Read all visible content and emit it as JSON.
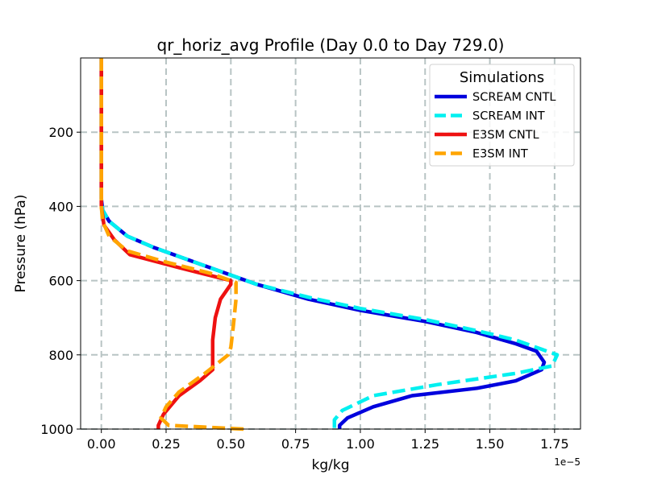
{
  "chart_data": {
    "type": "line",
    "title": "qr_horiz_avg Profile (Day 0.0 to Day 729.0)",
    "xlabel": "kg/kg",
    "ylabel": "Pressure (hPa)",
    "x_offset_label": "1e−5",
    "xlim": [
      -0.08,
      1.85
    ],
    "ylim": [
      1000,
      0
    ],
    "y_axis_inverted": true,
    "grid": true,
    "x_ticks": [
      0.0,
      0.25,
      0.5,
      0.75,
      1.0,
      1.25,
      1.5,
      1.75
    ],
    "x_tick_labels": [
      "0.00",
      "0.25",
      "0.50",
      "0.75",
      "1.00",
      "1.25",
      "1.50",
      "1.75"
    ],
    "y_ticks": [
      200,
      400,
      600,
      800,
      1000
    ],
    "y_tick_labels": [
      "200",
      "400",
      "600",
      "800",
      "1000"
    ],
    "legend": {
      "title": "Simulations",
      "placement": "top-right"
    },
    "series": [
      {
        "name": "SCREAM CNTL",
        "color": "#0000dd",
        "dash": "solid",
        "points": [
          [
            0.0,
            0
          ],
          [
            0.0,
            100
          ],
          [
            0.0,
            200
          ],
          [
            0.0,
            300
          ],
          [
            0.0,
            380
          ],
          [
            0.005,
            410
          ],
          [
            0.03,
            440
          ],
          [
            0.1,
            480
          ],
          [
            0.2,
            510
          ],
          [
            0.4,
            560
          ],
          [
            0.6,
            610
          ],
          [
            0.8,
            650
          ],
          [
            1.0,
            680
          ],
          [
            1.25,
            710
          ],
          [
            1.45,
            740
          ],
          [
            1.6,
            770
          ],
          [
            1.68,
            790
          ],
          [
            1.71,
            820
          ],
          [
            1.7,
            840
          ],
          [
            1.6,
            870
          ],
          [
            1.45,
            890
          ],
          [
            1.2,
            910
          ],
          [
            1.05,
            940
          ],
          [
            0.95,
            970
          ],
          [
            0.92,
            990
          ],
          [
            0.92,
            1000
          ]
        ]
      },
      {
        "name": "SCREAM INT",
        "color": "#00f0f0",
        "dash": "dashed",
        "points": [
          [
            0.0,
            0
          ],
          [
            0.0,
            100
          ],
          [
            0.0,
            200
          ],
          [
            0.0,
            300
          ],
          [
            0.0,
            380
          ],
          [
            0.005,
            410
          ],
          [
            0.03,
            440
          ],
          [
            0.1,
            480
          ],
          [
            0.2,
            510
          ],
          [
            0.4,
            560
          ],
          [
            0.6,
            610
          ],
          [
            0.8,
            645
          ],
          [
            1.0,
            675
          ],
          [
            1.25,
            705
          ],
          [
            1.45,
            735
          ],
          [
            1.6,
            760
          ],
          [
            1.7,
            785
          ],
          [
            1.76,
            800
          ],
          [
            1.74,
            830
          ],
          [
            1.6,
            850
          ],
          [
            1.3,
            880
          ],
          [
            1.05,
            910
          ],
          [
            0.93,
            950
          ],
          [
            0.9,
            975
          ],
          [
            0.9,
            1000
          ]
        ]
      },
      {
        "name": "E3SM CNTL",
        "color": "#ee1111",
        "dash": "solid",
        "points": [
          [
            0.0,
            0
          ],
          [
            0.0,
            100
          ],
          [
            0.0,
            200
          ],
          [
            0.0,
            300
          ],
          [
            0.0,
            400
          ],
          [
            0.01,
            450
          ],
          [
            0.05,
            490
          ],
          [
            0.11,
            530
          ],
          [
            0.3,
            565
          ],
          [
            0.5,
            600
          ],
          [
            0.5,
            610
          ],
          [
            0.46,
            650
          ],
          [
            0.44,
            700
          ],
          [
            0.43,
            760
          ],
          [
            0.43,
            820
          ],
          [
            0.43,
            840
          ],
          [
            0.38,
            870
          ],
          [
            0.3,
            910
          ],
          [
            0.24,
            960
          ],
          [
            0.22,
            990
          ],
          [
            0.22,
            1000
          ]
        ]
      },
      {
        "name": "E3SM INT",
        "color": "#ffa500",
        "dash": "dashed",
        "points": [
          [
            0.0,
            0
          ],
          [
            0.0,
            100
          ],
          [
            0.0,
            200
          ],
          [
            0.0,
            300
          ],
          [
            0.0,
            400
          ],
          [
            0.005,
            440
          ],
          [
            0.03,
            480
          ],
          [
            0.1,
            520
          ],
          [
            0.25,
            550
          ],
          [
            0.42,
            580
          ],
          [
            0.52,
            605
          ],
          [
            0.52,
            650
          ],
          [
            0.51,
            720
          ],
          [
            0.5,
            780
          ],
          [
            0.49,
            800
          ],
          [
            0.4,
            850
          ],
          [
            0.3,
            900
          ],
          [
            0.25,
            940
          ],
          [
            0.23,
            970
          ],
          [
            0.26,
            990
          ],
          [
            0.55,
            1000
          ]
        ]
      }
    ]
  }
}
